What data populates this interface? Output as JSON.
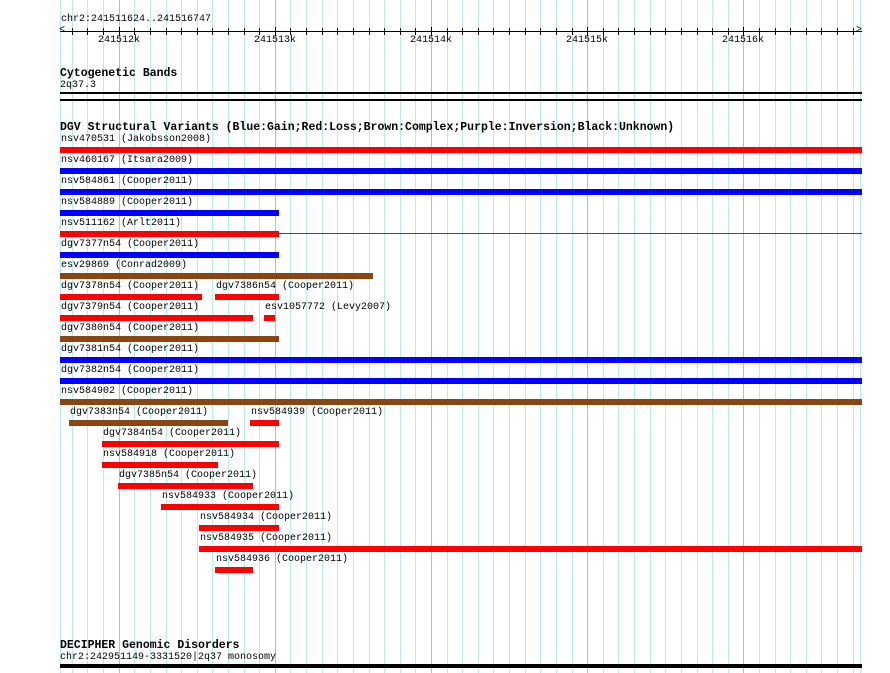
{
  "ruler": {
    "location": "chr2:241511624..241516747",
    "start": 241511624,
    "end": 241516747,
    "major_labels": [
      {
        "bp": 241512000,
        "label": "241512k"
      },
      {
        "bp": 241513000,
        "label": "241513k"
      },
      {
        "bp": 241514000,
        "label": "241514k"
      },
      {
        "bp": 241515000,
        "label": "241515k"
      },
      {
        "bp": 241516000,
        "label": "241516k"
      }
    ]
  },
  "cytobands": {
    "title": "Cytogenetic Bands",
    "band": "2q37.3"
  },
  "dgv": {
    "title": "DGV Structural Variants (Blue:Gain;Red:Loss;Brown:Complex;Purple:Inversion;Black:Unknown)",
    "colors": {
      "gain": "#0000ff",
      "loss": "#ff0000",
      "complex": "#8b4513",
      "inversion": "#800080",
      "unknown": "#000000"
    },
    "rows": [
      [
        {
          "label": "nsv470531 (Jakobsson2008)",
          "type": "loss",
          "start": 241511624,
          "end": 241516747
        }
      ],
      [
        {
          "label": "nsv460167 (Itsara2009)",
          "type": "gain",
          "start": 241511624,
          "end": 241516747
        }
      ],
      [
        {
          "label": "nsv584861 (Cooper2011)",
          "type": "gain",
          "start": 241511624,
          "end": 241516747
        }
      ],
      [
        {
          "label": "nsv584889 (Cooper2011)",
          "type": "gain",
          "start": 241511624,
          "end": 241513015
        }
      ],
      [
        {
          "label": "nsv511162 (Arlt2011)",
          "type": "loss",
          "start": 241511624,
          "end": 241513015,
          "thin_end": 241516747
        }
      ],
      [
        {
          "label": "dgv7377n54 (Cooper2011)",
          "type": "gain",
          "start": 241511624,
          "end": 241513015
        }
      ],
      [
        {
          "label": "esv29869 (Conrad2009)",
          "type": "complex",
          "start": 241511624,
          "end": 241513618
        }
      ],
      [
        {
          "label": "dgv7378n54 (Cooper2011)",
          "type": "loss",
          "start": 241511624,
          "end": 241512521
        },
        {
          "label": "dgv7386n54 (Cooper2011)",
          "type": "loss",
          "start": 241512618,
          "end": 241513015
        }
      ],
      [
        {
          "label": "dgv7379n54 (Cooper2011)",
          "type": "loss",
          "start": 241511624,
          "end": 241512848
        },
        {
          "label": "esv1057772 (Levy2007)",
          "type": "loss",
          "start": 241512932,
          "end": 241512989
        }
      ],
      [
        {
          "label": "dgv7380n54 (Cooper2011)",
          "type": "complex",
          "start": 241511624,
          "end": 241513015
        }
      ],
      [
        {
          "label": "dgv7381n54 (Cooper2011)",
          "type": "gain",
          "start": 241511624,
          "end": 241516747
        }
      ],
      [
        {
          "label": "dgv7382n54 (Cooper2011)",
          "type": "gain",
          "start": 241511624,
          "end": 241516747
        }
      ],
      [
        {
          "label": "nsv584902 (Cooper2011)",
          "type": "complex",
          "start": 241511624,
          "end": 241516747
        }
      ],
      [
        {
          "label": "dgv7383n54 (Cooper2011)",
          "type": "complex",
          "start": 241511682,
          "end": 241512688
        },
        {
          "label": "nsv584939 (Cooper2011)",
          "type": "loss",
          "start": 241512842,
          "end": 241513015
        }
      ],
      [
        {
          "label": "dgv7384n54 (Cooper2011)",
          "type": "loss",
          "start": 241511893,
          "end": 241513015
        }
      ],
      [
        {
          "label": "nsv584918 (Cooper2011)",
          "type": "loss",
          "start": 241511893,
          "end": 241512624
        }
      ],
      [
        {
          "label": "dgv7385n54 (Cooper2011)",
          "type": "loss",
          "start": 241511996,
          "end": 241512848
        }
      ],
      [
        {
          "label": "nsv584933 (Cooper2011)",
          "type": "loss",
          "start": 241512271,
          "end": 241513015
        }
      ],
      [
        {
          "label": "nsv584934 (Cooper2011)",
          "type": "loss",
          "start": 241512515,
          "end": 241513015
        }
      ],
      [
        {
          "label": "nsv584935 (Cooper2011)",
          "type": "loss",
          "start": 241512515,
          "end": 241516747
        }
      ],
      [
        {
          "label": "nsv584936 (Cooper2011)",
          "type": "loss",
          "start": 241512618,
          "end": 241512848
        }
      ]
    ]
  },
  "decipher": {
    "title": "DECIPHER Genomic Disorders",
    "feature": "chr2:242951149-3331520|2q37 monosomy"
  }
}
